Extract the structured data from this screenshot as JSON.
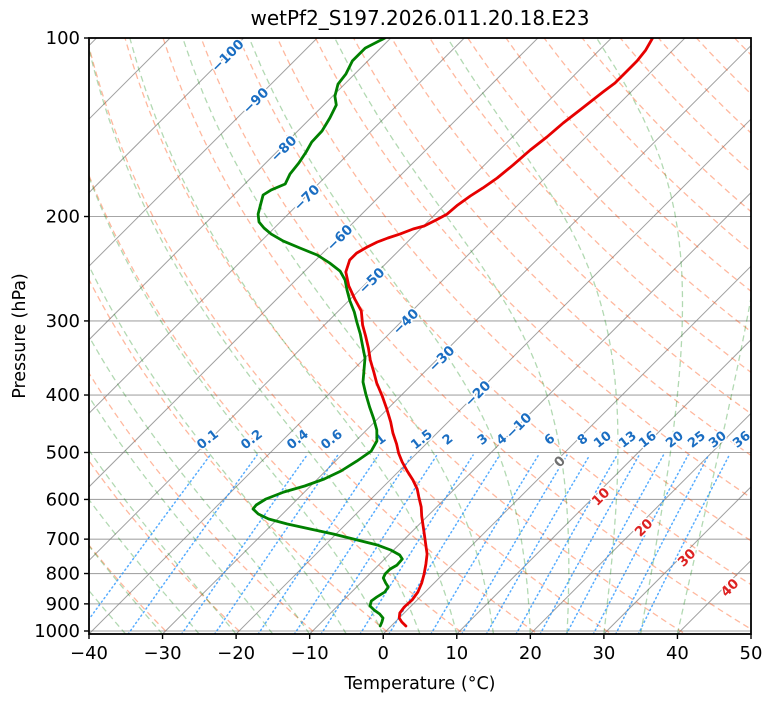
{
  "title": "wetPf2_S197.2026.011.20.18.E23",
  "axes": {
    "x_label": "Temperature (°C)",
    "y_label": "Pressure (hPa)",
    "x_ticks": [
      -40,
      -30,
      -20,
      -10,
      0,
      10,
      20,
      30,
      40,
      50
    ],
    "y_ticks": [
      100,
      200,
      300,
      400,
      500,
      600,
      700,
      800,
      900,
      1000
    ],
    "x_range_c": [
      -40,
      50
    ],
    "pressure_range_hpa": [
      100,
      1012
    ],
    "y_scale": "log",
    "skew_deg": 45,
    "grid": true
  },
  "colors": {
    "temperature": "#e60000",
    "dewpoint": "#008000",
    "isotherm": "#808080",
    "grid": "#a6a6a6",
    "dry_adiabat": "#ff4500",
    "moist_adiabat": "#008000",
    "mixing_line": "#1e90ff",
    "label_cold": "#1b6ec2",
    "label_zero": "#707070",
    "label_warm": "#dd2222",
    "spine": "#000000",
    "text": "#000000"
  },
  "isotherm_labels": [
    {
      "value": -100,
      "tone": "cold"
    },
    {
      "value": -90,
      "tone": "cold"
    },
    {
      "value": -80,
      "tone": "cold"
    },
    {
      "value": -70,
      "tone": "cold"
    },
    {
      "value": -60,
      "tone": "cold"
    },
    {
      "value": -50,
      "tone": "cold"
    },
    {
      "value": -40,
      "tone": "cold"
    },
    {
      "value": -30,
      "tone": "cold"
    },
    {
      "value": -20,
      "tone": "cold"
    },
    {
      "value": -10,
      "tone": "cold"
    },
    {
      "value": 0,
      "tone": "zero"
    },
    {
      "value": 10,
      "tone": "warm"
    },
    {
      "value": 20,
      "tone": "warm"
    },
    {
      "value": 30,
      "tone": "warm"
    },
    {
      "value": 40,
      "tone": "warm"
    }
  ],
  "mixing_ratio_labels": [
    "0.1",
    "0.2",
    "0.4",
    "0.6",
    "1",
    "1.5",
    "2",
    "3",
    "4",
    "6",
    "8",
    "10",
    "13",
    "16",
    "20",
    "25",
    "30",
    "36"
  ],
  "chart_data": {
    "type": "line",
    "chart_kind": "skew-t-log-p-sounding",
    "title": "wetPf2_S197.2026.011.20.18.E23",
    "xlabel": "Temperature (°C)",
    "ylabel": "Pressure (hPa)",
    "x_range_c": [
      -40,
      50
    ],
    "pressure_range_hpa": [
      100,
      1012
    ],
    "legend": "none",
    "series": [
      {
        "name": "temperature",
        "color": "#e60000",
        "units": {
          "p": "hPa",
          "t": "degC"
        },
        "points": [
          [
            100.0,
            -44.4
          ],
          [
            104.8,
            -43.7
          ],
          [
            109.3,
            -43.4
          ],
          [
            113.7,
            -43.4
          ],
          [
            119.1,
            -43.4
          ],
          [
            123.3,
            -43.8
          ],
          [
            132.3,
            -44.5
          ],
          [
            139.1,
            -45.0
          ],
          [
            146.9,
            -45.3
          ],
          [
            154.5,
            -45.8
          ],
          [
            163.8,
            -46.1
          ],
          [
            172.2,
            -46.5
          ],
          [
            179.1,
            -47.1
          ],
          [
            184.7,
            -47.7
          ],
          [
            191.3,
            -48.2
          ],
          [
            198.1,
            -48.4
          ],
          [
            202.7,
            -49.1
          ],
          [
            207.5,
            -49.9
          ],
          [
            209.9,
            -51.0
          ],
          [
            214.1,
            -52.1
          ],
          [
            217.4,
            -53.2
          ],
          [
            220.8,
            -54.1
          ],
          [
            225.2,
            -54.8
          ],
          [
            230.5,
            -55.4
          ],
          [
            236.8,
            -55.4
          ],
          [
            248.1,
            -54.3
          ],
          [
            261.9,
            -52.0
          ],
          [
            275.5,
            -49.4
          ],
          [
            288.6,
            -46.9
          ],
          [
            304.8,
            -44.8
          ],
          [
            318.1,
            -42.9
          ],
          [
            333.2,
            -40.9
          ],
          [
            349.2,
            -39.0
          ],
          [
            365.8,
            -36.9
          ],
          [
            381.8,
            -35.0
          ],
          [
            401.5,
            -32.5
          ],
          [
            422.3,
            -30.1
          ],
          [
            444.2,
            -27.8
          ],
          [
            463.6,
            -26.0
          ],
          [
            483.9,
            -24.0
          ],
          [
            501.1,
            -22.5
          ],
          [
            518.9,
            -20.8
          ],
          [
            537.3,
            -18.9
          ],
          [
            556.4,
            -16.9
          ],
          [
            576.1,
            -15.1
          ],
          [
            594.2,
            -13.8
          ],
          [
            617.9,
            -12.1
          ],
          [
            640.1,
            -10.8
          ],
          [
            662.8,
            -9.4
          ],
          [
            686.4,
            -8.0
          ],
          [
            716.2,
            -6.3
          ],
          [
            741.7,
            -4.9
          ],
          [
            771.1,
            -3.7
          ],
          [
            801.5,
            -2.6
          ],
          [
            829.9,
            -1.7
          ],
          [
            859.4,
            -1.0
          ],
          [
            886.5,
            -0.7
          ],
          [
            911.0,
            -0.8
          ],
          [
            932.5,
            -0.6
          ],
          [
            950.8,
            0.0
          ],
          [
            965.7,
            0.9
          ],
          [
            980.8,
            2.0
          ]
        ]
      },
      {
        "name": "dewpoint",
        "color": "#008000",
        "units": {
          "p": "hPa",
          "t": "degC"
        },
        "points": [
          [
            100.0,
            -80.8
          ],
          [
            104.0,
            -82.1
          ],
          [
            109.3,
            -82.1
          ],
          [
            115.0,
            -81.2
          ],
          [
            119.6,
            -80.9
          ],
          [
            125.3,
            -79.7
          ],
          [
            129.7,
            -78.3
          ],
          [
            136.4,
            -77.4
          ],
          [
            143.5,
            -76.7
          ],
          [
            149.8,
            -76.6
          ],
          [
            155.7,
            -76.0
          ],
          [
            162.5,
            -75.5
          ],
          [
            169.6,
            -75.2
          ],
          [
            176.3,
            -74.5
          ],
          [
            180.4,
            -75.6
          ],
          [
            184.0,
            -76.0
          ],
          [
            189.8,
            -75.2
          ],
          [
            198.1,
            -74.1
          ],
          [
            204.3,
            -72.9
          ],
          [
            209.1,
            -71.4
          ],
          [
            214.1,
            -69.6
          ],
          [
            220.0,
            -67.0
          ],
          [
            226.0,
            -63.8
          ],
          [
            232.2,
            -60.5
          ],
          [
            239.6,
            -57.7
          ],
          [
            247.2,
            -55.2
          ],
          [
            256.0,
            -53.3
          ],
          [
            266.0,
            -51.7
          ],
          [
            277.6,
            -49.8
          ],
          [
            289.8,
            -47.7
          ],
          [
            301.3,
            -46.0
          ],
          [
            315.6,
            -43.9
          ],
          [
            331.9,
            -41.8
          ],
          [
            346.4,
            -40.0
          ],
          [
            363.0,
            -38.5
          ],
          [
            380.3,
            -37.0
          ],
          [
            398.4,
            -35.0
          ],
          [
            419.1,
            -32.7
          ],
          [
            439.1,
            -30.5
          ],
          [
            458.2,
            -28.6
          ],
          [
            478.2,
            -27.1
          ],
          [
            497.3,
            -26.5
          ],
          [
            516.9,
            -27.1
          ],
          [
            537.3,
            -27.9
          ],
          [
            554.2,
            -29.1
          ],
          [
            569.4,
            -30.8
          ],
          [
            582.9,
            -32.8
          ],
          [
            598.9,
            -34.3
          ],
          [
            613.1,
            -34.8
          ],
          [
            622.7,
            -34.7
          ],
          [
            634.9,
            -33.3
          ],
          [
            647.3,
            -31.2
          ],
          [
            660.0,
            -28.0
          ],
          [
            672.9,
            -24.2
          ],
          [
            686.4,
            -20.3
          ],
          [
            702.4,
            -16.3
          ],
          [
            716.2,
            -12.9
          ],
          [
            730.2,
            -10.4
          ],
          [
            744.5,
            -8.5
          ],
          [
            756.2,
            -7.6
          ],
          [
            774.1,
            -7.5
          ],
          [
            786.2,
            -7.9
          ],
          [
            801.5,
            -7.9
          ],
          [
            814.0,
            -7.6
          ],
          [
            829.9,
            -6.6
          ],
          [
            842.9,
            -5.7
          ],
          [
            859.4,
            -5.5
          ],
          [
            876.3,
            -5.9
          ],
          [
            890.0,
            -6.1
          ],
          [
            907.5,
            -5.6
          ],
          [
            921.7,
            -4.5
          ],
          [
            936.1,
            -3.2
          ],
          [
            950.8,
            -2.2
          ],
          [
            965.7,
            -1.8
          ],
          [
            980.8,
            -1.5
          ]
        ]
      }
    ],
    "background_lines": {
      "isotherms_c": {
        "start": -130,
        "end": 50,
        "step": 10
      },
      "dry_adiabats_c": {
        "start": -30,
        "end": 190,
        "step": 10
      },
      "moist_adiabats_start_c": {
        "start": -40,
        "end": 40,
        "step": 5
      },
      "mixing_ratio_g_kg": [
        0.1,
        0.2,
        0.4,
        0.6,
        1,
        1.5,
        2,
        3,
        4,
        6,
        8,
        10,
        13,
        16,
        20,
        25,
        30,
        36
      ],
      "mixing_ratio_top_hpa": 505
    },
    "isotherm_label_values": [
      -100,
      -90,
      -80,
      -70,
      -60,
      -50,
      -40,
      -30,
      -20,
      -10,
      0,
      10,
      20,
      30,
      40
    ]
  }
}
